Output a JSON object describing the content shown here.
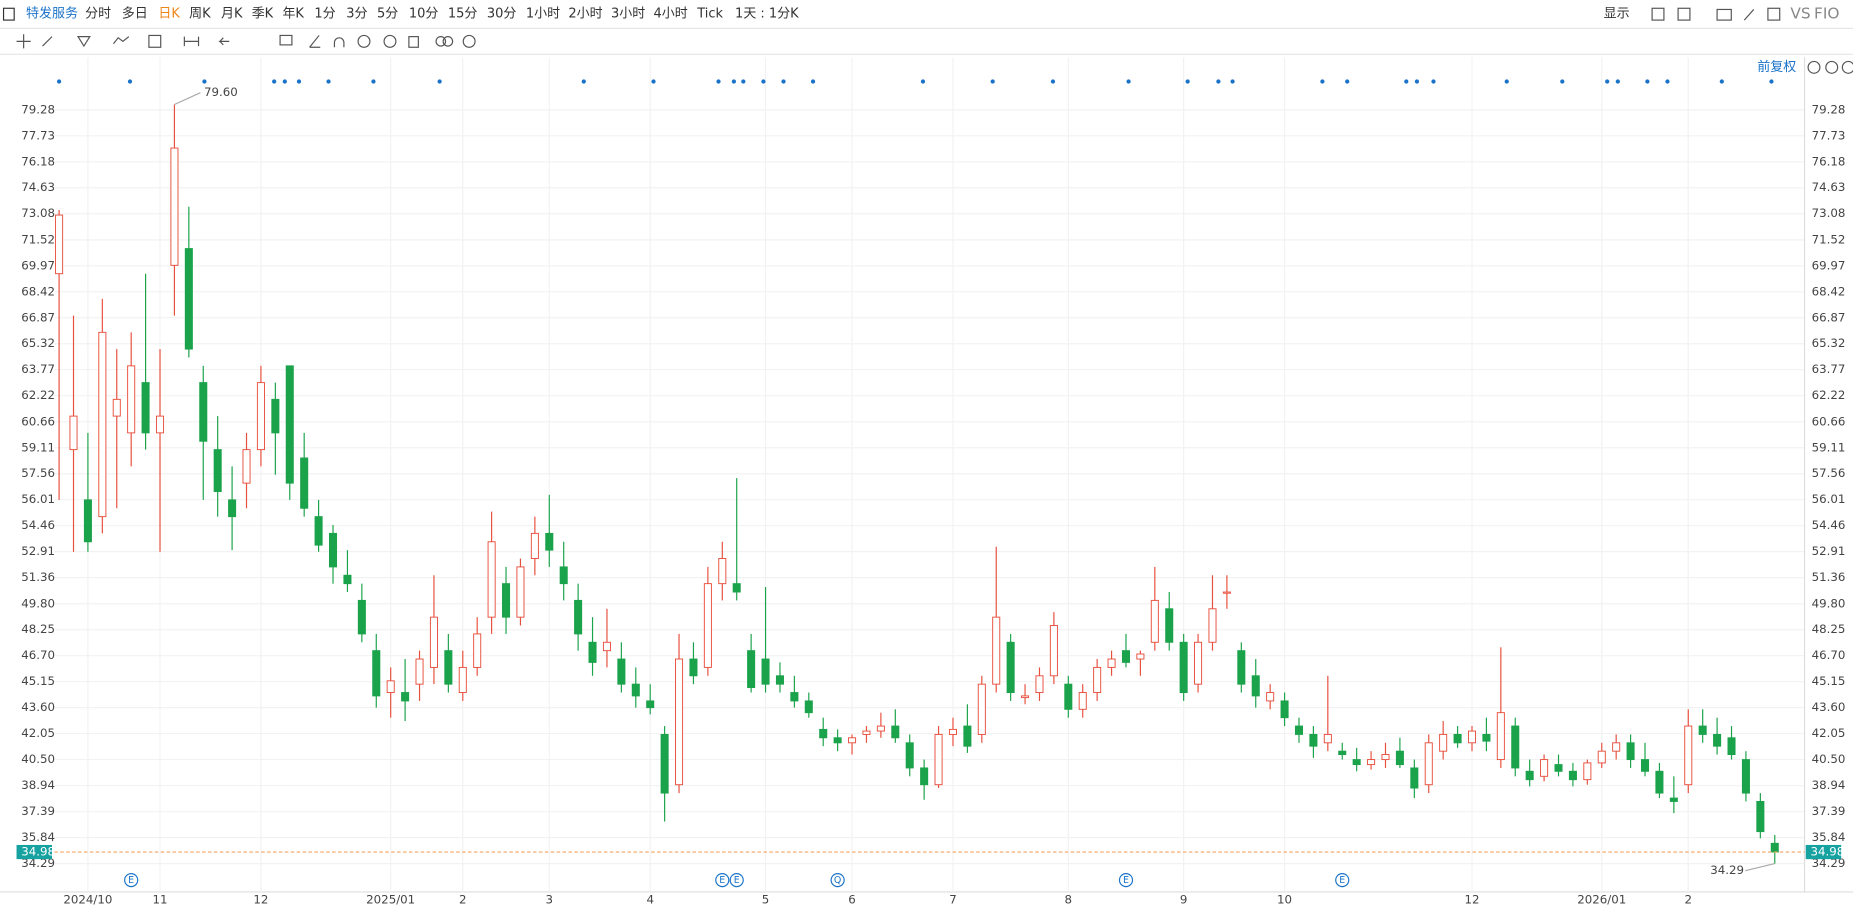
{
  "toolbar": {
    "symbol": "特发服务",
    "periods": [
      "分时",
      "多日",
      "日K",
      "周K",
      "月K",
      "季K",
      "年K",
      "1分",
      "3分",
      "5分",
      "10分",
      "15分",
      "30分",
      "1小时",
      "2小时",
      "3小时",
      "4小时",
      "Tick",
      "1天 : 1分K"
    ],
    "active_period": 2,
    "display": "显示",
    "vs": "VS",
    "fio": "FIO"
  },
  "chart_data": {
    "type": "candlestick",
    "adjust_label": "前复权",
    "up_color": "#e8503e",
    "down_color": "#1ba34b",
    "grid": true,
    "categories": [
      null,
      null,
      "2024/10",
      null,
      null,
      null,
      null,
      "11",
      null,
      null,
      null,
      null,
      null,
      null,
      "12",
      null,
      null,
      null,
      null,
      null,
      null,
      null,
      null,
      "2025/01",
      null,
      null,
      null,
      null,
      "2",
      null,
      null,
      null,
      null,
      null,
      "3",
      null,
      null,
      null,
      null,
      null,
      null,
      "4",
      null,
      null,
      null,
      null,
      null,
      null,
      null,
      "5",
      null,
      null,
      null,
      null,
      null,
      "6",
      null,
      null,
      null,
      null,
      null,
      null,
      "7",
      null,
      null,
      null,
      null,
      null,
      null,
      null,
      "8",
      null,
      null,
      null,
      null,
      null,
      null,
      null,
      "9",
      null,
      null,
      null,
      null,
      null,
      null,
      "10",
      null,
      null,
      null,
      null,
      null,
      null,
      null,
      null,
      null,
      null,
      null,
      null,
      "12",
      null,
      null,
      null,
      null,
      null,
      null,
      null,
      null,
      "2026/01",
      null,
      null,
      null,
      null,
      null,
      "2",
      null,
      null,
      null,
      null,
      null,
      null
    ],
    "ohlc": [
      [
        69.5,
        73.3,
        56,
        73
      ],
      [
        59,
        67,
        52.9,
        61
      ],
      [
        56,
        60,
        52.9,
        53.5
      ],
      [
        55,
        68,
        54,
        66
      ],
      [
        61,
        65,
        55.5,
        62
      ],
      [
        60,
        66,
        58,
        64
      ],
      [
        63,
        69.5,
        59,
        60
      ],
      [
        60,
        65,
        52.9,
        61
      ],
      [
        70,
        79.6,
        67,
        77
      ],
      [
        71,
        73.5,
        64.5,
        65
      ],
      [
        63,
        64,
        56,
        59.5
      ],
      [
        59,
        61,
        55,
        56.5
      ],
      [
        56,
        58,
        53,
        55
      ],
      [
        57,
        60,
        55.5,
        59
      ],
      [
        59,
        64,
        58,
        63
      ],
      [
        62,
        63,
        57.5,
        60
      ],
      [
        64,
        64,
        56,
        57
      ],
      [
        58.5,
        60,
        55,
        55.5
      ],
      [
        55,
        56,
        52.9,
        53.3
      ],
      [
        54,
        54.5,
        51,
        52
      ],
      [
        51.5,
        53,
        50.5,
        51
      ],
      [
        50,
        51,
        47.5,
        48
      ],
      [
        47,
        48,
        43.6,
        44.3
      ],
      [
        44.5,
        46,
        43,
        45.2
      ],
      [
        44.5,
        46.5,
        42.8,
        44
      ],
      [
        45,
        47,
        44,
        46.5
      ],
      [
        46,
        51.5,
        45,
        49
      ],
      [
        47,
        48,
        44.5,
        45
      ],
      [
        44.5,
        47,
        44,
        46
      ],
      [
        46,
        49,
        45.5,
        48
      ],
      [
        49,
        55.3,
        48,
        53.5
      ],
      [
        51,
        52,
        48,
        49
      ],
      [
        49,
        52.5,
        48.5,
        52
      ],
      [
        52.5,
        55,
        51.5,
        54
      ],
      [
        54,
        56.3,
        52,
        53
      ],
      [
        52,
        53.5,
        50,
        51
      ],
      [
        50,
        51,
        47,
        48
      ],
      [
        47.5,
        49,
        45.5,
        46.3
      ],
      [
        47,
        49.5,
        46,
        47.5
      ],
      [
        46.5,
        47.5,
        44.5,
        45
      ],
      [
        45,
        46,
        43.6,
        44.3
      ],
      [
        44,
        45,
        43.2,
        43.6
      ],
      [
        42,
        42.5,
        36.8,
        38.5
      ],
      [
        39,
        48,
        38.5,
        46.5
      ],
      [
        46.5,
        47.5,
        45,
        45.5
      ],
      [
        46,
        52,
        45.5,
        51
      ],
      [
        51,
        53.5,
        50,
        52.5
      ],
      [
        51,
        57.3,
        50,
        50.5
      ],
      [
        47,
        48,
        44.5,
        44.8
      ],
      [
        46.5,
        50.8,
        44.5,
        45
      ],
      [
        45.5,
        46.3,
        44.5,
        45
      ],
      [
        44.5,
        45.5,
        43.6,
        44
      ],
      [
        44,
        44.5,
        43,
        43.3
      ],
      [
        42.3,
        43,
        41.3,
        41.8
      ],
      [
        41.8,
        42.3,
        41,
        41.5
      ],
      [
        41.5,
        42,
        40.8,
        41.8
      ],
      [
        42,
        42.5,
        41.5,
        42.2
      ],
      [
        42.2,
        43.3,
        41.8,
        42.5
      ],
      [
        42.5,
        43.5,
        41.5,
        41.8
      ],
      [
        41.5,
        42,
        39.5,
        40
      ],
      [
        40,
        40.5,
        38.1,
        39
      ],
      [
        39,
        42.5,
        38.8,
        42
      ],
      [
        42,
        43,
        41.3,
        42.3
      ],
      [
        42.5,
        43.8,
        40.9,
        41.3
      ],
      [
        42,
        45.5,
        41.5,
        45
      ],
      [
        45,
        53.2,
        44.5,
        49
      ],
      [
        47.5,
        48,
        44,
        44.5
      ],
      [
        44.2,
        45,
        43.8,
        44.3
      ],
      [
        44.5,
        46,
        44,
        45.5
      ],
      [
        45.5,
        49.3,
        45,
        48.5
      ],
      [
        45,
        45.5,
        43,
        43.5
      ],
      [
        43.5,
        45,
        43,
        44.5
      ],
      [
        44.5,
        46.5,
        44,
        46
      ],
      [
        46,
        47,
        45.5,
        46.5
      ],
      [
        47,
        48,
        46,
        46.3
      ],
      [
        46.5,
        47,
        45.5,
        46.8
      ],
      [
        47.5,
        52,
        47,
        50
      ],
      [
        49.5,
        50.5,
        47,
        47.5
      ],
      [
        47.5,
        48,
        44,
        44.5
      ],
      [
        45,
        48,
        44.5,
        47.5
      ],
      [
        47.5,
        51.5,
        47,
        49.5
      ],
      [
        50.5,
        51.5,
        49.5,
        50.5
      ],
      [
        47,
        47.5,
        44.5,
        45
      ],
      [
        45.5,
        46.5,
        43.6,
        44.3
      ],
      [
        44,
        45,
        43.5,
        44.5
      ],
      [
        44,
        44.5,
        42.5,
        43
      ],
      [
        42.5,
        43,
        41.5,
        42
      ],
      [
        42,
        42.5,
        40.6,
        41.3
      ],
      [
        41.5,
        45.5,
        41,
        42
      ],
      [
        41,
        41.5,
        40.5,
        40.8
      ],
      [
        40.5,
        41.2,
        39.8,
        40.2
      ],
      [
        40.2,
        41,
        39.9,
        40.5
      ],
      [
        40.5,
        41.5,
        40,
        40.8
      ],
      [
        41,
        41.8,
        40,
        40.2
      ],
      [
        40,
        40.5,
        38.2,
        38.8
      ],
      [
        39,
        42,
        38.5,
        41.5
      ],
      [
        41,
        42.8,
        40.5,
        42
      ],
      [
        42,
        42.5,
        41.2,
        41.5
      ],
      [
        41.5,
        42.5,
        41,
        42.2
      ],
      [
        42,
        43,
        41,
        41.6
      ],
      [
        40.5,
        47.2,
        40,
        43.3
      ],
      [
        42.5,
        43,
        39.5,
        40
      ],
      [
        39.8,
        40.5,
        38.9,
        39.3
      ],
      [
        39.5,
        40.8,
        39.2,
        40.5
      ],
      [
        40.2,
        40.8,
        39.5,
        39.8
      ],
      [
        39.8,
        40.3,
        38.9,
        39.3
      ],
      [
        39.3,
        40.5,
        39,
        40.3
      ],
      [
        40.3,
        41.5,
        40,
        41
      ],
      [
        41,
        42,
        40.5,
        41.5
      ],
      [
        41.5,
        42,
        40,
        40.5
      ],
      [
        40.5,
        41.5,
        39.5,
        39.8
      ],
      [
        39.8,
        40.3,
        38.2,
        38.5
      ],
      [
        38.2,
        39.5,
        37.3,
        38
      ],
      [
        39,
        43.5,
        38.5,
        42.5
      ],
      [
        42.5,
        43.5,
        41.5,
        42
      ],
      [
        42,
        43,
        40.8,
        41.3
      ],
      [
        41.8,
        42.5,
        40.5,
        40.8
      ],
      [
        40.5,
        41,
        38,
        38.5
      ],
      [
        38,
        38.5,
        35.8,
        36.2
      ],
      [
        35.5,
        36,
        34.29,
        34.98
      ]
    ],
    "ylim": [
      32.6,
      81.0
    ],
    "yticks": [
      79.28,
      77.73,
      76.18,
      74.63,
      73.08,
      71.52,
      69.97,
      68.42,
      66.87,
      65.32,
      63.77,
      62.22,
      60.66,
      59.11,
      57.56,
      56.01,
      54.46,
      52.91,
      51.36,
      {
        "value": 49.8,
        "label": "49.80"
      },
      48.25,
      {
        "value": 46.7,
        "label": "46.70"
      },
      45.15,
      {
        "value": 43.6,
        "label": "43.60"
      },
      42.05,
      {
        "value": 40.5,
        "label": "40.50"
      },
      38.94,
      37.39,
      35.84,
      34.29
    ],
    "last_price": 34.98,
    "high_label": {
      "value": 79.6,
      "label": "79.60"
    },
    "low_label": 34.29,
    "event_markers": [
      {
        "label": "E",
        "at": 5
      },
      {
        "label": "E",
        "at": 46
      },
      {
        "label": "E",
        "at": 47
      },
      {
        "label": "Q",
        "at": 54
      },
      {
        "label": "E",
        "at": 74
      },
      {
        "label": "E",
        "at": 89
      }
    ]
  }
}
